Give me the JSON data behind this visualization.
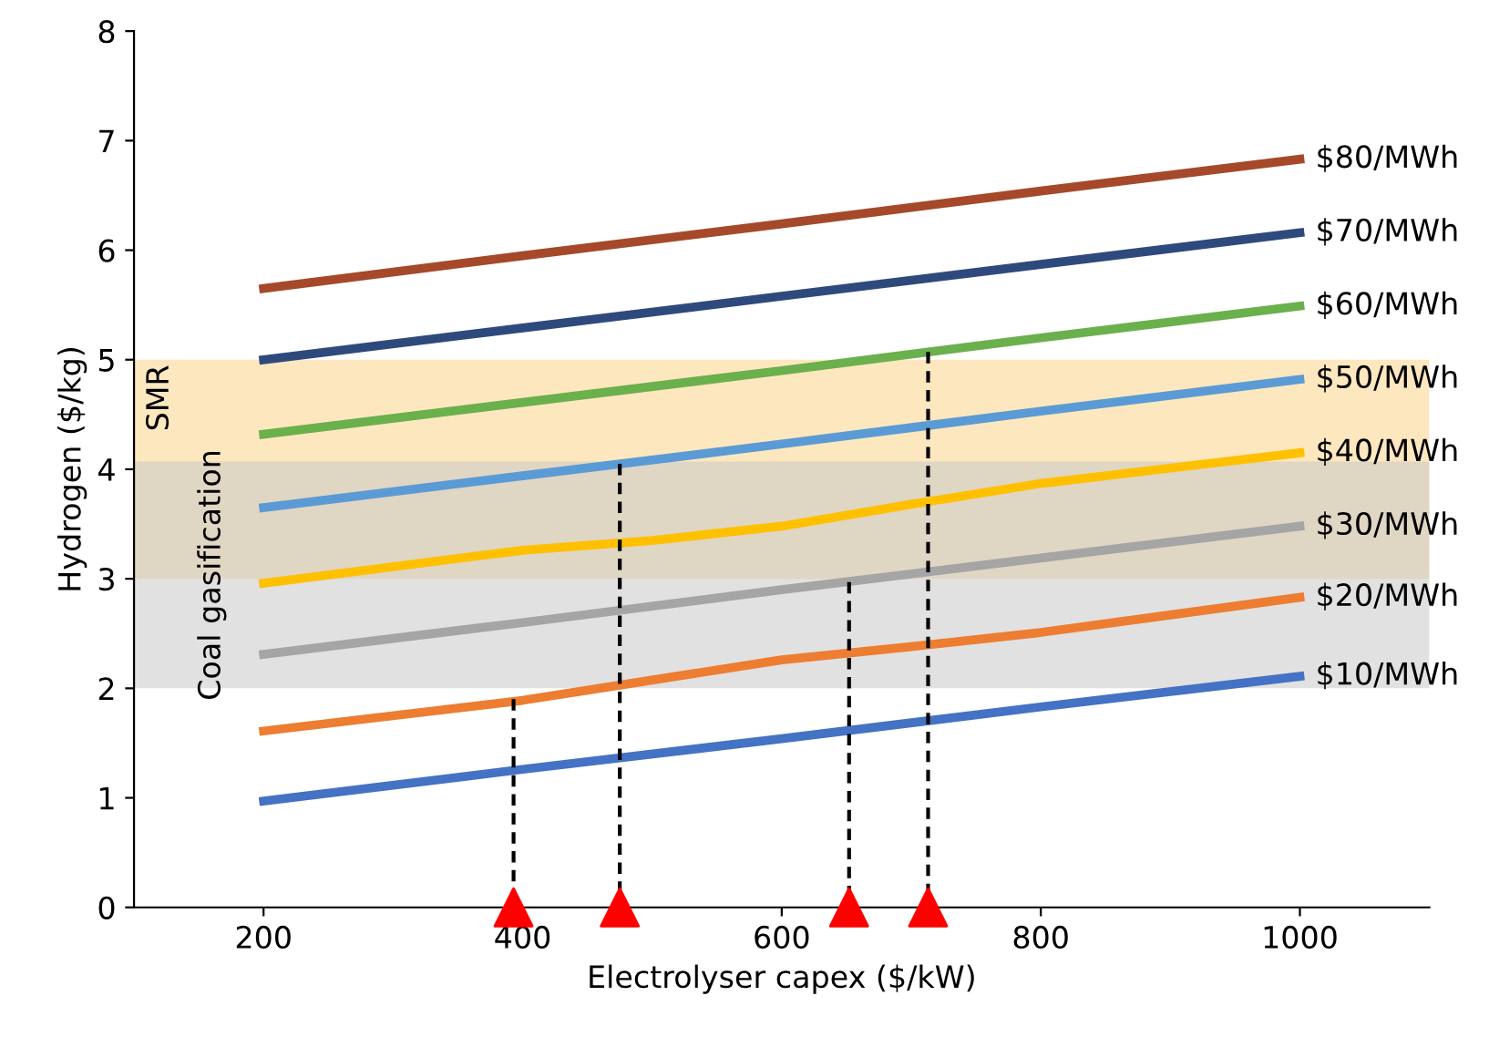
{
  "chart_data": {
    "type": "line",
    "xlabel": "Electrolyser capex ($/kW)",
    "ylabel": "Hydrogen ($/kg)",
    "xlim": [
      100,
      1100
    ],
    "xticks": [
      200,
      400,
      600,
      800,
      1000
    ],
    "ylim": [
      0,
      8
    ],
    "yticks": [
      0,
      1,
      2,
      3,
      4,
      5,
      6,
      7,
      8
    ],
    "grid": false,
    "legend": false,
    "bands": [
      {
        "axis": "y",
        "from": 3.0,
        "to": 5.0,
        "label": "SMR",
        "color": "#fbd38a"
      },
      {
        "axis": "y",
        "from": 2.0,
        "to": 4.07,
        "label": "Coal gasification",
        "color": "#c8c8c8"
      }
    ],
    "series": [
      {
        "name": "$80/MWh",
        "color": "#a5492a",
        "x": [
          200,
          400,
          600,
          800,
          1000
        ],
        "values": [
          5.65,
          5.95,
          6.24,
          6.54,
          6.83
        ]
      },
      {
        "name": "$70/MWh",
        "color": "#2e4a7d",
        "x": [
          200,
          400,
          600,
          800,
          1000
        ],
        "values": [
          5.0,
          5.29,
          5.58,
          5.87,
          6.16
        ]
      },
      {
        "name": "$60/MWh",
        "color": "#6ab04c",
        "x": [
          200,
          400,
          600,
          800,
          1000
        ],
        "values": [
          4.32,
          4.61,
          4.9,
          5.2,
          5.49
        ]
      },
      {
        "name": "$50/MWh",
        "color": "#5b9bd5",
        "x": [
          200,
          400,
          600,
          800,
          1000
        ],
        "values": [
          3.65,
          3.94,
          4.23,
          4.53,
          4.82
        ]
      },
      {
        "name": "$40/MWh",
        "color": "#ffc000",
        "x": [
          200,
          400,
          500,
          600,
          700,
          800,
          1000
        ],
        "values": [
          2.96,
          3.26,
          3.35,
          3.48,
          3.68,
          3.87,
          4.15
        ]
      },
      {
        "name": "$30/MWh",
        "color": "#a5a5a5",
        "x": [
          200,
          400,
          600,
          800,
          1000
        ],
        "values": [
          2.31,
          2.6,
          2.9,
          3.19,
          3.48
        ]
      },
      {
        "name": "$20/MWh",
        "color": "#ed7d31",
        "x": [
          200,
          400,
          600,
          700,
          800,
          1000
        ],
        "values": [
          1.61,
          1.89,
          2.26,
          2.38,
          2.51,
          2.83
        ]
      },
      {
        "name": "$10/MWh",
        "color": "#4472c4",
        "x": [
          200,
          400,
          600,
          800,
          1000
        ],
        "values": [
          0.97,
          1.26,
          1.54,
          1.83,
          2.11
        ]
      },
      {
        "color": "#000000",
        "line_style": "dashed",
        "x": [
          393,
          393
        ],
        "values": [
          1.9,
          0
        ]
      },
      {
        "color": "#000000",
        "line_style": "dashed",
        "x": [
          475,
          475
        ],
        "values": [
          4.05,
          0
        ]
      },
      {
        "color": "#000000",
        "line_style": "dashed",
        "x": [
          652,
          652
        ],
        "values": [
          2.97,
          0
        ]
      },
      {
        "color": "#000000",
        "line_style": "dashed",
        "x": [
          713,
          713
        ],
        "values": [
          5.07,
          0
        ]
      },
      {
        "type": "scatter",
        "marker": "triangle",
        "color": "#ff0000",
        "x": [
          393,
          475,
          652,
          713
        ],
        "values": [
          0,
          0,
          0,
          0
        ]
      }
    ]
  }
}
